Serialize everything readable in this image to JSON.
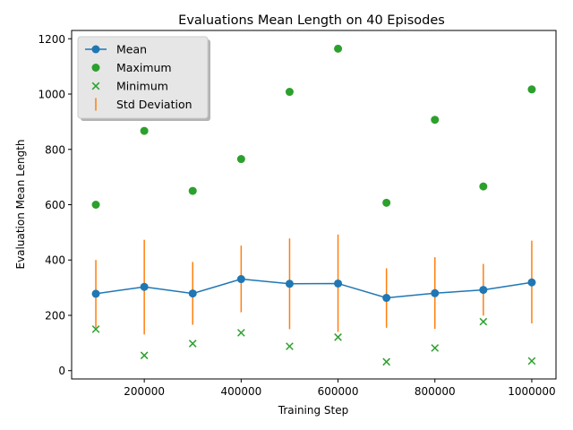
{
  "chart_data": {
    "type": "line",
    "title": "Evaluations Mean Length on 40 Episodes",
    "xlabel": "Training Step",
    "ylabel": "Evaluation Mean Length",
    "x": [
      100000,
      200000,
      300000,
      400000,
      500000,
      600000,
      700000,
      800000,
      900000,
      1000000
    ],
    "xlim": [
      50000,
      1050000
    ],
    "ylim": [
      -30,
      1230
    ],
    "xticks": [
      200000,
      400000,
      600000,
      800000,
      1000000
    ],
    "yticks": [
      0,
      200,
      400,
      600,
      800,
      1000,
      1200
    ],
    "grid": false,
    "legend_position": "top-left",
    "series": [
      {
        "name": "Mean",
        "kind": "line-marker",
        "color": "#1f77b4",
        "values": [
          278,
          303,
          279,
          331,
          314,
          315,
          263,
          280,
          292,
          319
        ]
      },
      {
        "name": "Maximum",
        "kind": "scatter-circle",
        "color": "#2ca02c",
        "values": [
          600,
          867,
          650,
          765,
          1008,
          1164,
          607,
          907,
          666,
          1017
        ]
      },
      {
        "name": "Minimum",
        "kind": "scatter-x",
        "color": "#2ca02c",
        "values": [
          150,
          55,
          98,
          137,
          88,
          121,
          32,
          82,
          177,
          35
        ]
      },
      {
        "name": "Std Deviation",
        "kind": "errorbar",
        "color": "#ff7f0e",
        "low": [
          155,
          131,
          166,
          211,
          150,
          140,
          155,
          151,
          199,
          171
        ],
        "high": [
          400,
          473,
          393,
          452,
          478,
          492,
          370,
          410,
          386,
          470
        ]
      }
    ]
  }
}
